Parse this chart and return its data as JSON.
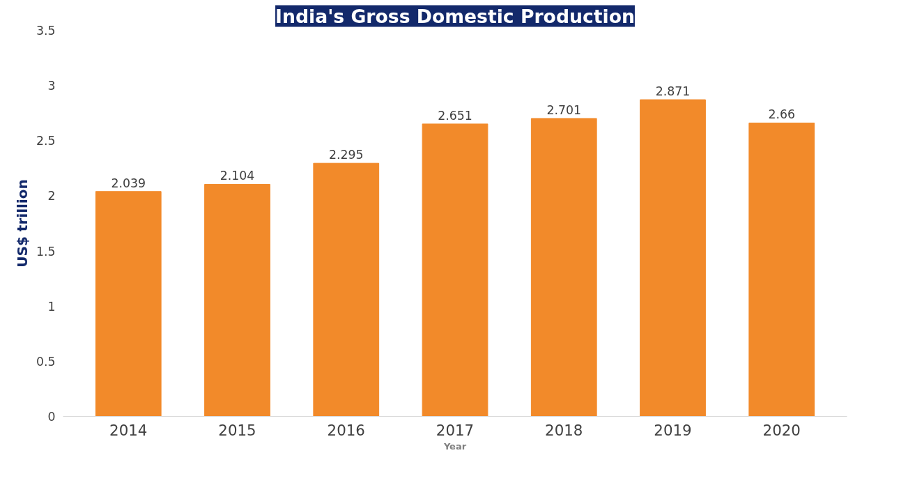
{
  "chart_data": {
    "type": "bar",
    "title": "India's Gross Domestic Production",
    "xlabel": "Year",
    "ylabel": "US$ trillion",
    "categories": [
      "2014",
      "2015",
      "2016",
      "2017",
      "2018",
      "2019",
      "2020"
    ],
    "values": [
      2.039,
      2.104,
      2.295,
      2.651,
      2.701,
      2.871,
      2.66
    ],
    "color": "#f28a2a",
    "ylim": [
      0,
      3.5
    ],
    "yticks": [
      0,
      0.5,
      1,
      1.5,
      2,
      2.5,
      3,
      3.5
    ],
    "data_labels": true
  }
}
